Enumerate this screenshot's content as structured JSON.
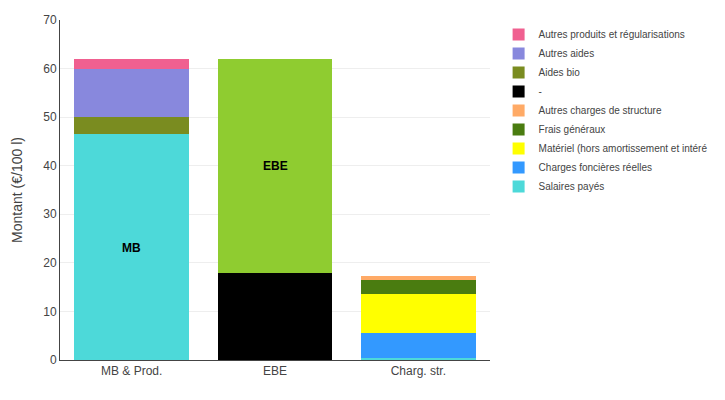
{
  "chart_data": {
    "type": "bar",
    "stacked": true,
    "categories": [
      "MB & Prod.",
      "EBE",
      "Charg. str."
    ],
    "ylabel": "Montant (€/100 l)",
    "ylim": [
      0,
      70
    ],
    "yticks": [
      0,
      10,
      20,
      30,
      40,
      50,
      60,
      70
    ],
    "grid": true,
    "legend": "right",
    "series": [
      {
        "name": "Salaires payés",
        "color": "#4dd9d9",
        "values": [
          46.5,
          0,
          0.5
        ]
      },
      {
        "name": "Charges foncières réelles",
        "color": "#3399ff",
        "values": [
          0,
          0,
          5.0
        ]
      },
      {
        "name": "Matériel (hors amortissement et intéré",
        "color": "#ffff00",
        "values": [
          0,
          0,
          8.0
        ]
      },
      {
        "name": "Frais généraux",
        "color": "#4a7c10",
        "values": [
          0,
          0,
          3.0
        ]
      },
      {
        "name": "Autres charges de structure",
        "color": "#ffaa66",
        "values": [
          0,
          0,
          0.8
        ]
      },
      {
        "name": "-",
        "color": "#000000",
        "values": [
          0,
          18.0,
          0
        ]
      },
      {
        "name": "Aides bio",
        "color": "#7a8c20",
        "values": [
          3.5,
          0,
          0
        ]
      },
      {
        "name": "Autres aides",
        "color": "#8888dd",
        "values": [
          10.0,
          0,
          0
        ]
      },
      {
        "name": "Autres produits et régularisations",
        "color": "#f06090",
        "values": [
          2.0,
          0,
          0
        ]
      },
      {
        "color": "#8fcc30",
        "values": [
          0,
          44.0,
          0
        ]
      }
    ],
    "annotations": [
      {
        "text": "MB",
        "x": "MB & Prod.",
        "y": 23
      },
      {
        "text": "EBE",
        "x": "EBE",
        "y": 40
      }
    ]
  }
}
